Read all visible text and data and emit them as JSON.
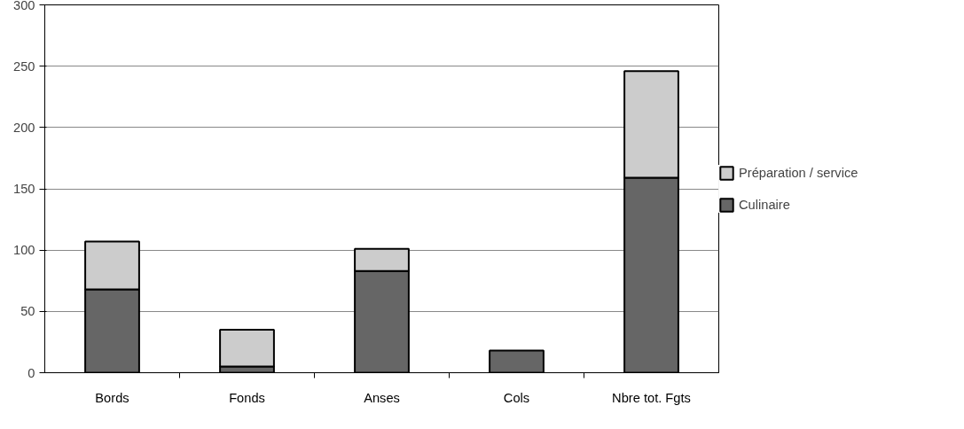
{
  "chart_data": {
    "type": "bar",
    "stacked": true,
    "categories": [
      "Bords",
      "Fonds",
      "Anses",
      "Cols",
      "Nbre tot. Fgts"
    ],
    "series": [
      {
        "name": "Culinaire",
        "color": "#666666",
        "values": [
          68,
          5,
          83,
          18,
          159
        ]
      },
      {
        "name": "Préparation / service",
        "color": "#cccccc",
        "values": [
          39,
          30,
          18,
          null,
          87
        ]
      }
    ],
    "ylim": [
      0,
      300
    ],
    "yticks": [
      0,
      50,
      100,
      150,
      200,
      250,
      300
    ],
    "grid": "y",
    "legend": "right"
  }
}
